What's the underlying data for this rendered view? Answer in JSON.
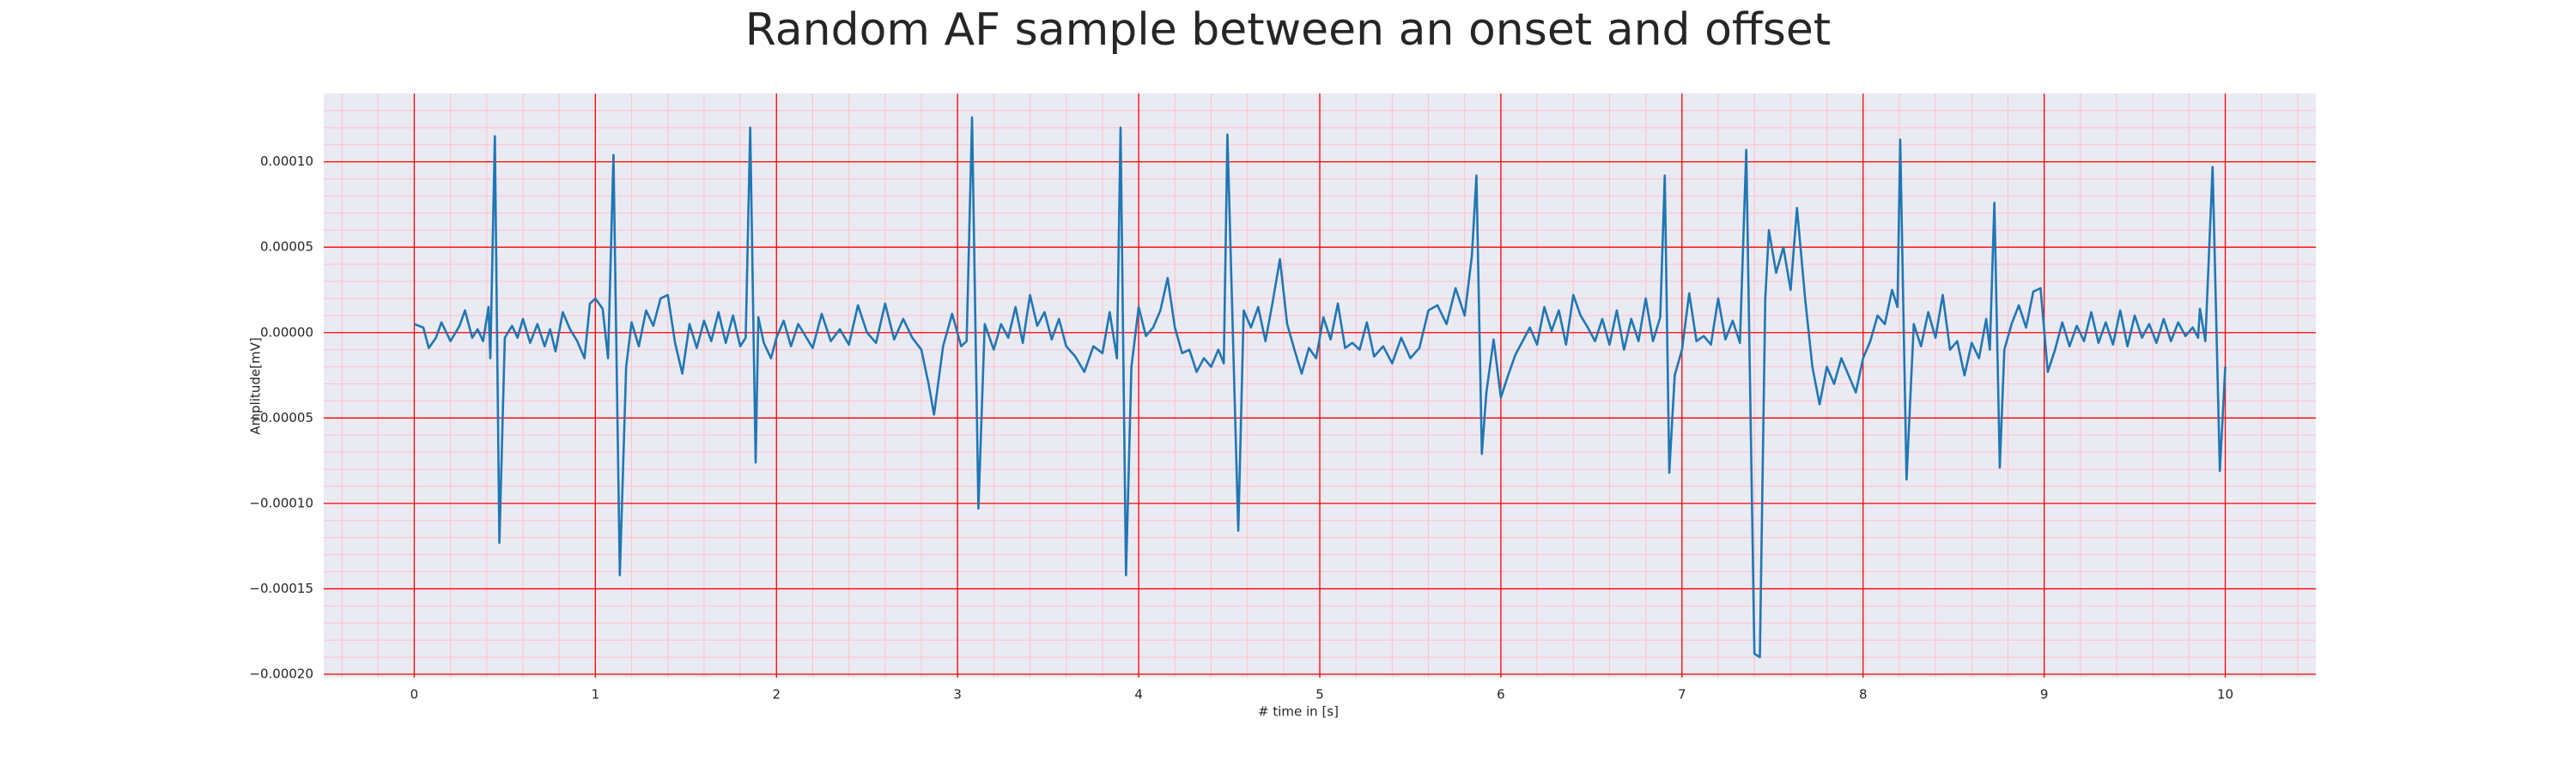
{
  "chart_data": {
    "type": "line",
    "title": "Random AF sample between an onset and offset",
    "xlabel": "# time in [s]",
    "ylabel": "Amplitude[mV]",
    "xlim": [
      -0.5,
      10.5
    ],
    "ylim": [
      -0.000202,
      0.00014
    ],
    "xticks": [
      0,
      1,
      2,
      3,
      4,
      5,
      6,
      7,
      8,
      9,
      10
    ],
    "yticks": [
      {
        "value": -0.0002,
        "label": "−0.00020"
      },
      {
        "value": -0.00015,
        "label": "−0.00015"
      },
      {
        "value": -0.0001,
        "label": "−0.00010"
      },
      {
        "value": -5e-05,
        "label": "−0.00005"
      },
      {
        "value": 0,
        "label": "0.00000"
      },
      {
        "value": 5e-05,
        "label": "0.00005"
      },
      {
        "value": 0.0001,
        "label": "0.00010"
      }
    ],
    "grid": true,
    "minor_grid": true,
    "background": "#eaeaf2",
    "grid_color": "#ff0000",
    "minor_grid_color": "#ffc0cb",
    "x": [
      0,
      0.05,
      0.08,
      0.12,
      0.15,
      0.2,
      0.25,
      0.28,
      0.32,
      0.35,
      0.38,
      0.41,
      0.42,
      0.445,
      0.47,
      0.5,
      0.54,
      0.57,
      0.6,
      0.64,
      0.68,
      0.72,
      0.75,
      0.78,
      0.82,
      0.86,
      0.9,
      0.94,
      0.97,
      1.0,
      1.04,
      1.07,
      1.1,
      1.135,
      1.17,
      1.2,
      1.24,
      1.28,
      1.32,
      1.36,
      1.4,
      1.44,
      1.48,
      1.52,
      1.56,
      1.6,
      1.64,
      1.68,
      1.72,
      1.76,
      1.8,
      1.83,
      1.855,
      1.885,
      1.9,
      1.93,
      1.97,
      2.0,
      2.04,
      2.08,
      2.12,
      2.16,
      2.2,
      2.25,
      2.3,
      2.35,
      2.4,
      2.45,
      2.5,
      2.55,
      2.6,
      2.65,
      2.7,
      2.75,
      2.8,
      2.84,
      2.87,
      2.92,
      2.97,
      3.02,
      3.05,
      3.08,
      3.115,
      3.15,
      3.2,
      3.24,
      3.28,
      3.32,
      3.36,
      3.4,
      3.44,
      3.48,
      3.52,
      3.56,
      3.6,
      3.65,
      3.7,
      3.75,
      3.8,
      3.84,
      3.88,
      3.9,
      3.93,
      3.96,
      4.0,
      4.04,
      4.08,
      4.12,
      4.16,
      4.2,
      4.24,
      4.28,
      4.32,
      4.36,
      4.4,
      4.44,
      4.47,
      4.49,
      4.55,
      4.58,
      4.62,
      4.66,
      4.7,
      4.74,
      4.78,
      4.82,
      4.86,
      4.9,
      4.94,
      4.98,
      5.02,
      5.06,
      5.1,
      5.14,
      5.18,
      5.22,
      5.26,
      5.3,
      5.35,
      5.4,
      5.45,
      5.5,
      5.55,
      5.6,
      5.65,
      5.7,
      5.75,
      5.8,
      5.84,
      5.865,
      5.895,
      5.92,
      5.96,
      6.0,
      6.04,
      6.08,
      6.12,
      6.16,
      6.2,
      6.24,
      6.28,
      6.32,
      6.36,
      6.4,
      6.44,
      6.48,
      6.52,
      6.56,
      6.6,
      6.64,
      6.68,
      6.72,
      6.76,
      6.8,
      6.84,
      6.88,
      6.905,
      6.93,
      6.96,
      7.0,
      7.04,
      7.08,
      7.12,
      7.16,
      7.2,
      7.24,
      7.28,
      7.32,
      7.355,
      7.4,
      7.43,
      7.46,
      7.48,
      7.52,
      7.56,
      7.6,
      7.635,
      7.68,
      7.72,
      7.76,
      7.8,
      7.84,
      7.88,
      7.92,
      7.96,
      8.0,
      8.04,
      8.08,
      8.12,
      8.16,
      8.19,
      8.205,
      8.24,
      8.28,
      8.32,
      8.36,
      8.4,
      8.44,
      8.48,
      8.52,
      8.56,
      8.6,
      8.64,
      8.68,
      8.7,
      8.725,
      8.755,
      8.78,
      8.82,
      8.86,
      8.9,
      8.94,
      8.98,
      9.02,
      9.06,
      9.1,
      9.14,
      9.18,
      9.22,
      9.26,
      9.3,
      9.34,
      9.38,
      9.42,
      9.46,
      9.5,
      9.54,
      9.58,
      9.62,
      9.66,
      9.7,
      9.74,
      9.78,
      9.82,
      9.85,
      9.86,
      9.89,
      9.93,
      9.97,
      10.0
    ],
    "series": [
      {
        "color": "#1f77b4",
        "values": [
          5e-06,
          3e-06,
          -9e-06,
          -3e-06,
          6e-06,
          -5e-06,
          4e-06,
          1.3e-05,
          -3e-06,
          2e-06,
          -5e-06,
          1.5e-05,
          -1.5e-05,
          0.000115,
          -0.000123,
          -3e-06,
          4e-06,
          -3e-06,
          8e-06,
          -6e-06,
          5e-06,
          -8e-06,
          2e-06,
          -1.1e-05,
          1.2e-05,
          2e-06,
          -5e-06,
          -1.5e-05,
          1.7e-05,
          2e-05,
          1.4e-05,
          -1.5e-05,
          0.000104,
          -0.000142,
          -2e-05,
          6e-06,
          -8e-06,
          1.3e-05,
          4e-06,
          2e-05,
          2.2e-05,
          -6e-06,
          -2.4e-05,
          5e-06,
          -9e-06,
          7e-06,
          -5e-06,
          1.2e-05,
          -6e-06,
          1e-05,
          -8e-06,
          -3e-06,
          0.00012,
          -7.6e-05,
          9e-06,
          -6e-06,
          -1.5e-05,
          -3e-06,
          7e-06,
          -8e-06,
          5e-06,
          -2e-06,
          -9e-06,
          1.1e-05,
          -5e-06,
          2e-06,
          -7e-06,
          1.6e-05,
          0.0,
          -6e-06,
          1.7e-05,
          -4e-06,
          8e-06,
          -3e-06,
          -1e-05,
          -3e-05,
          -4.8e-05,
          -8e-06,
          1.1e-05,
          -8e-06,
          -5e-06,
          0.000126,
          -0.000103,
          5e-06,
          -1e-05,
          5e-06,
          -3e-06,
          1.5e-05,
          -6e-06,
          2.2e-05,
          4e-06,
          1.2e-05,
          -4e-06,
          8e-06,
          -8e-06,
          -1.4e-05,
          -2.3e-05,
          -8e-06,
          -1.2e-05,
          1.2e-05,
          -1.5e-05,
          0.00012,
          -0.000142,
          -2e-05,
          1.5e-05,
          -2e-06,
          3e-06,
          1.3e-05,
          3.2e-05,
          3e-06,
          -1.2e-05,
          -1e-05,
          -2.3e-05,
          -1.5e-05,
          -2e-05,
          -1e-05,
          -1.8e-05,
          0.000116,
          -0.000116,
          1.3e-05,
          3e-06,
          1.5e-05,
          -5e-06,
          1.8e-05,
          4.3e-05,
          5e-06,
          -1e-05,
          -2.4e-05,
          -9e-06,
          -1.5e-05,
          9e-06,
          -4e-06,
          1.7e-05,
          -9e-06,
          -6e-06,
          -1e-05,
          6e-06,
          -1.4e-05,
          -8e-06,
          -1.8e-05,
          -3e-06,
          -1.5e-05,
          -9e-06,
          1.3e-05,
          1.6e-05,
          5e-06,
          2.6e-05,
          1e-05,
          4.5e-05,
          9.2e-05,
          -7.1e-05,
          -3.5e-05,
          -4e-06,
          -3.8e-05,
          -2.5e-05,
          -1.3e-05,
          -5e-06,
          3e-06,
          -7e-06,
          1.5e-05,
          1e-06,
          1.3e-05,
          -7e-06,
          2.2e-05,
          1e-05,
          3e-06,
          -5e-06,
          8e-06,
          -7e-06,
          1.3e-05,
          -1e-05,
          8e-06,
          -5e-06,
          2e-05,
          -5e-06,
          9e-06,
          9.2e-05,
          -8.2e-05,
          -2.5e-05,
          -1e-05,
          2.3e-05,
          -5e-06,
          -2e-06,
          -7e-06,
          2e-05,
          -4e-06,
          7e-06,
          -6e-06,
          0.000107,
          -0.000188,
          -0.00019,
          2e-05,
          6e-05,
          3.5e-05,
          5e-05,
          2.5e-05,
          7.3e-05,
          2e-05,
          -2e-05,
          -4.2e-05,
          -2e-05,
          -3e-05,
          -1.5e-05,
          -2.5e-05,
          -3.5e-05,
          -1.5e-05,
          -5e-06,
          1e-05,
          5e-06,
          2.5e-05,
          1.5e-05,
          0.000113,
          -8.6e-05,
          5e-06,
          -8e-06,
          1.2e-05,
          -3e-06,
          2.2e-05,
          -1e-05,
          -5e-06,
          -2.5e-05,
          -6e-06,
          -1.5e-05,
          8e-06,
          -1e-05,
          7.6e-05,
          -7.9e-05,
          -1e-05,
          5e-06,
          1.6e-05,
          3e-06,
          2.4e-05,
          2.6e-05,
          -2.3e-05,
          -1e-05,
          6e-06,
          -8e-06,
          4e-06,
          -5e-06,
          1.2e-05,
          -6e-06,
          6e-06,
          -7e-06,
          1.3e-05,
          -8e-06,
          1e-05,
          -3e-06,
          5e-06,
          -6e-06,
          8e-06,
          -5e-06,
          6e-06,
          -2e-06,
          3e-06,
          -3e-06,
          1.4e-05,
          -5e-06,
          9.7e-05,
          -8.1e-05,
          -2e-05
        ]
      }
    ]
  }
}
